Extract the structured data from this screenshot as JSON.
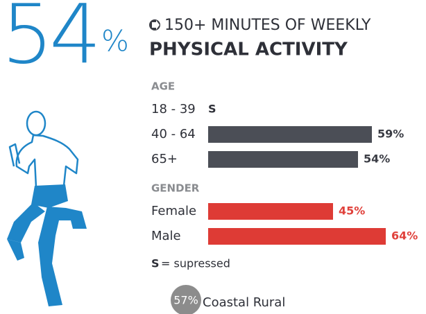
{
  "chart_data": {
    "type": "bar",
    "stat": {
      "number": "54",
      "unit": "%"
    },
    "title": "150+ MINUTES OF WEEKLY",
    "subtitle": "PHYSICAL ACTIVITY",
    "groups": [
      {
        "name": "AGE",
        "color": "#4b4e56",
        "label_color": "#3a3c44",
        "categories": [
          "18 - 39",
          "40 - 64",
          "65+"
        ],
        "values": [
          null,
          59,
          54
        ],
        "value_labels": [
          "S",
          "59%",
          "54%"
        ]
      },
      {
        "name": "GENDER",
        "color": "#de3b35",
        "label_color": "#e0413b",
        "categories": [
          "Female",
          "Male"
        ],
        "values": [
          45,
          64
        ],
        "value_labels": [
          "45%",
          "64%"
        ]
      }
    ],
    "note": {
      "symbol": "S",
      "text": "= supressed"
    },
    "comparison": {
      "value_label": "57%",
      "label": "Coastal Rural"
    }
  }
}
